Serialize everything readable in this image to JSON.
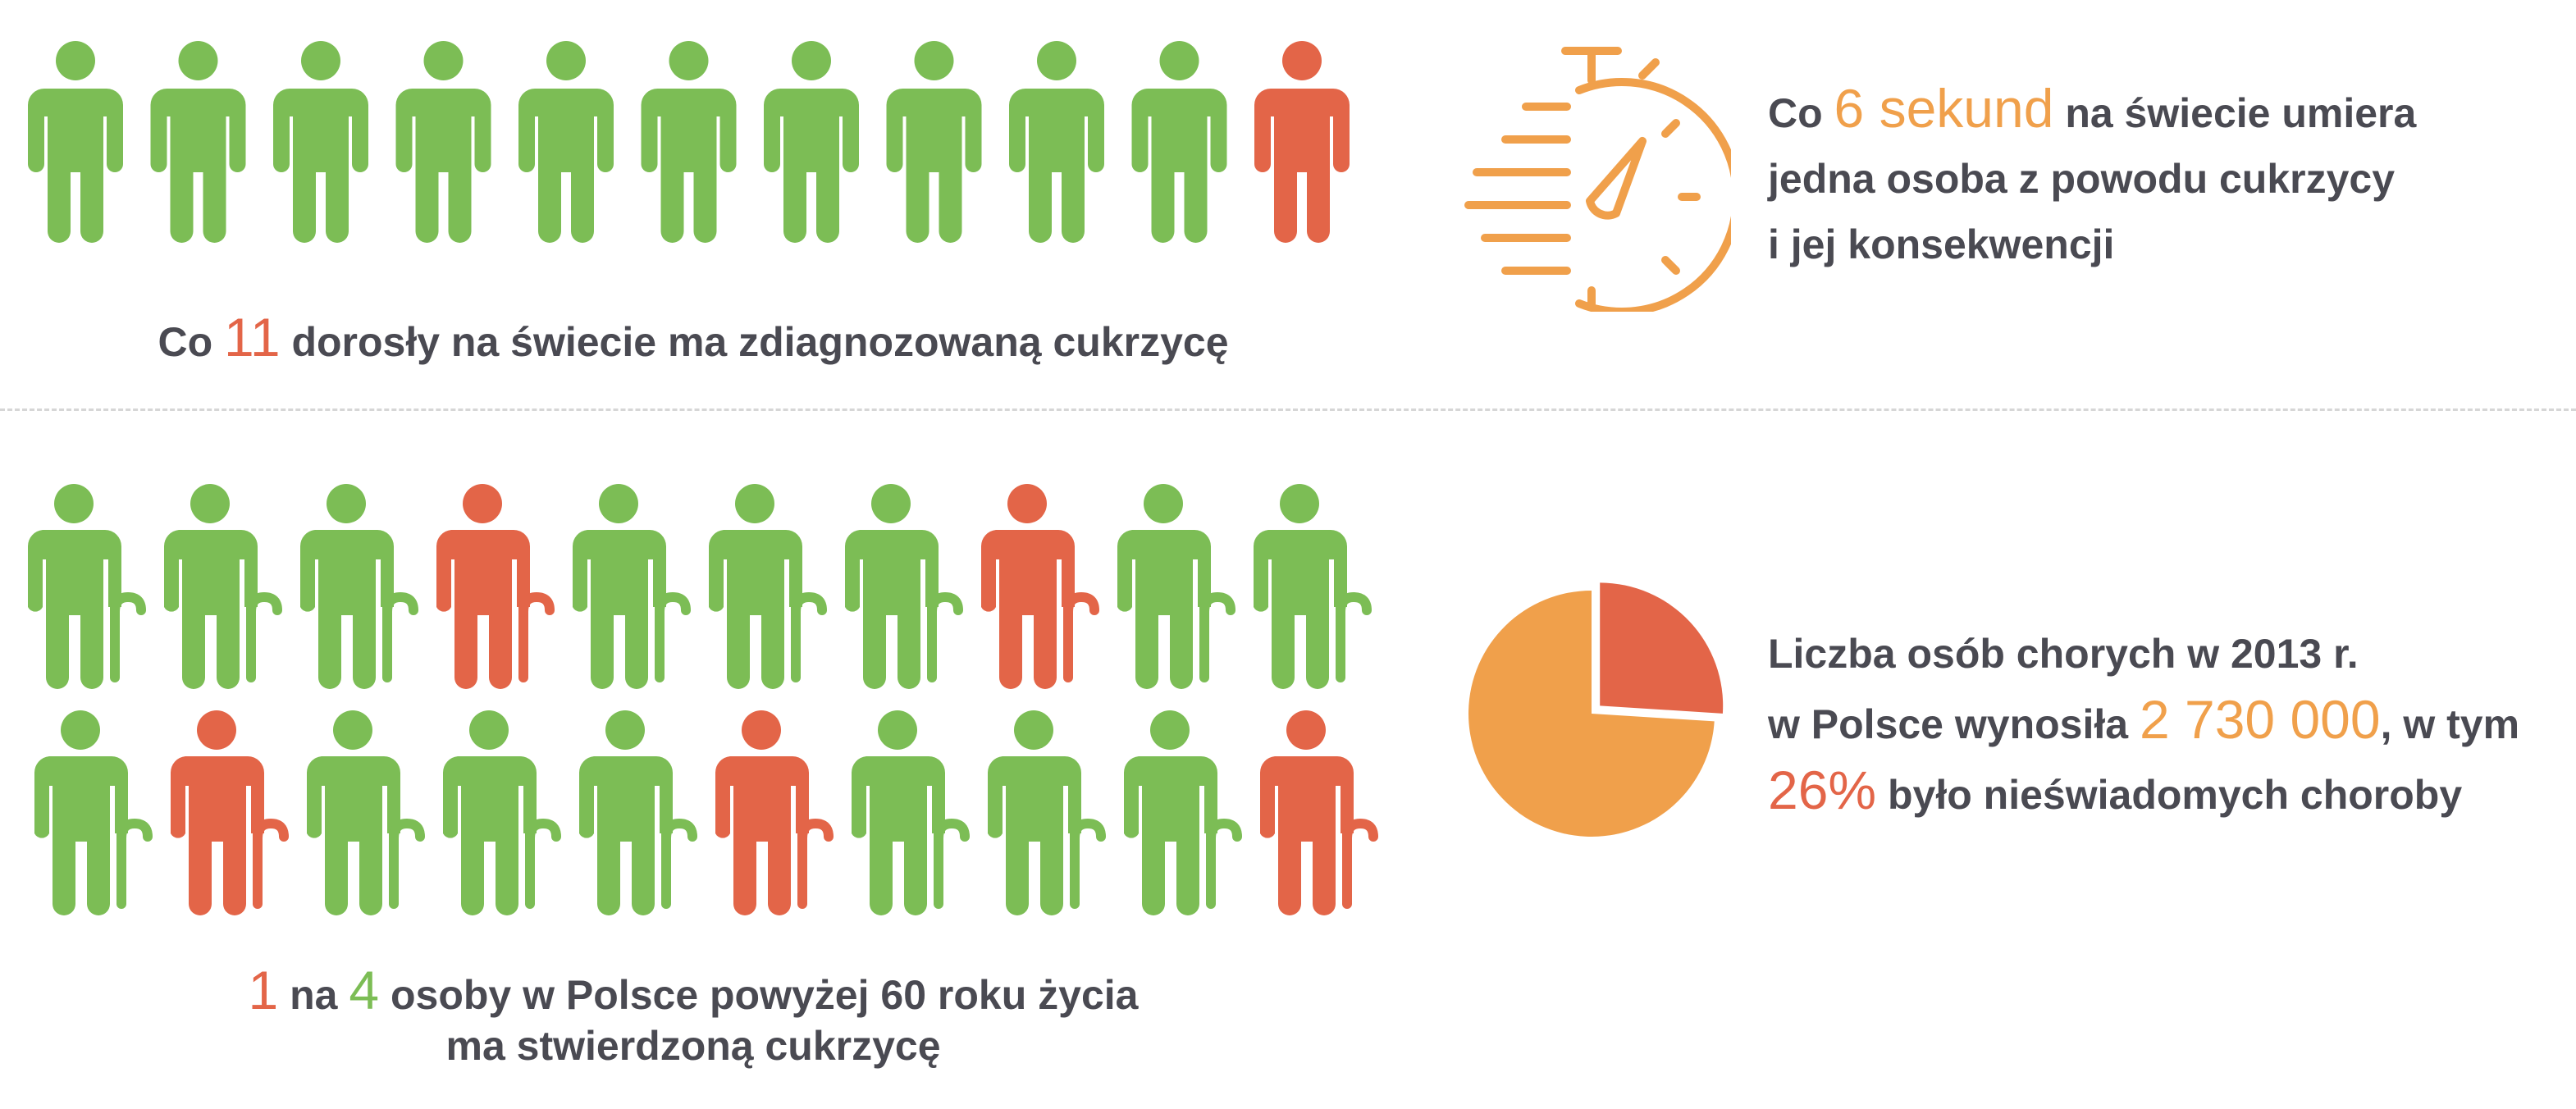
{
  "colors": {
    "green": "#7cbd55",
    "red": "#e36548",
    "orange": "#f0a04b",
    "text": "#4a4a52",
    "divider": "#d6d6d6"
  },
  "icons": {
    "person": "person-icon",
    "person_cane": "elderly-person-with-cane-icon",
    "stopwatch": "stopwatch-icon",
    "pie": "pie-chart"
  },
  "stat1": {
    "figures": 11,
    "highlighted_index": 10,
    "caption_prefix": "Co ",
    "caption_number": "11",
    "caption_suffix": " dorosły na świecie ma zdiagnozowaną cukrzycę"
  },
  "stat2": {
    "line1_prefix": "Co ",
    "line1_number": "6 sekund",
    "line1_suffix": " na świecie umiera",
    "line2": "jedna osoba z powodu cukrzycy",
    "line3": "i jej konsekwencji"
  },
  "stat3": {
    "rows": [
      [
        false,
        false,
        false,
        true,
        false,
        false,
        false,
        true,
        false,
        false
      ],
      [
        false,
        true,
        false,
        false,
        false,
        true,
        false,
        false,
        false,
        true
      ]
    ],
    "caption_number_a": "1",
    "caption_mid": " na ",
    "caption_number_b": "4",
    "caption_suffix": " osoby w Polsce  powyżej 60 roku życia",
    "caption_line2": "ma stwierdzoną cukrzycę"
  },
  "stat4": {
    "line1": "Liczba osób chorych w 2013 r.",
    "line2_prefix": "w Polsce wynosiła ",
    "line2_number": "2 730 000",
    "line2_suffix": ", w tym",
    "line3_number": "26%",
    "line3_suffix": " było nieświadomych choroby",
    "pie_fraction": 0.26
  }
}
